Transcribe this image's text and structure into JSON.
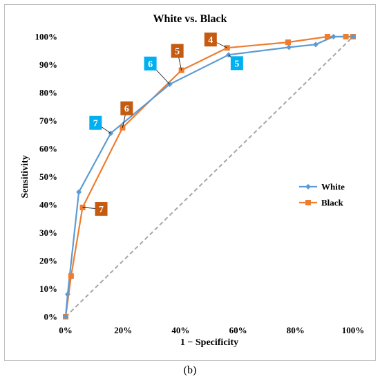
{
  "chart_data": {
    "type": "line",
    "title": "White vs. Black",
    "xlabel": "1 − Specificity",
    "ylabel": "Sensitivity",
    "xlim": [
      0,
      100
    ],
    "ylim": [
      0,
      100
    ],
    "x_ticks": [
      "0%",
      "20%",
      "40%",
      "60%",
      "80%",
      "100%"
    ],
    "y_ticks": [
      "0%",
      "10%",
      "20%",
      "30%",
      "40%",
      "50%",
      "60%",
      "70%",
      "80%",
      "90%",
      "100%"
    ],
    "grid": false,
    "legend_position": "right",
    "reference_line": {
      "from": [
        0,
        0
      ],
      "to": [
        100,
        100
      ],
      "style": "dashed",
      "color": "#a6a6a6"
    },
    "series": [
      {
        "name": "White",
        "color": "#5b9bd5",
        "marker": "diamond",
        "points": [
          [
            0,
            0
          ],
          [
            0.7,
            8
          ],
          [
            4.6,
            44.5
          ],
          [
            15.7,
            65.5
          ],
          [
            36.2,
            83
          ],
          [
            56.7,
            93.5
          ],
          [
            77.7,
            96.2
          ],
          [
            87,
            97.2
          ],
          [
            93.2,
            100
          ],
          [
            100,
            100
          ]
        ]
      },
      {
        "name": "Black",
        "color": "#ed7d31",
        "marker": "square",
        "points": [
          [
            0,
            0
          ],
          [
            1.9,
            14.5
          ],
          [
            5.9,
            39
          ],
          [
            19.8,
            67.5
          ],
          [
            40.3,
            88
          ],
          [
            56.2,
            96
          ],
          [
            77.4,
            98
          ],
          [
            91.1,
            100
          ],
          [
            97.5,
            100
          ],
          [
            100,
            100
          ]
        ]
      }
    ],
    "annotations": [
      {
        "label": "7",
        "series": "White",
        "point": [
          15.7,
          65.5
        ],
        "box_color": "#00b0f0"
      },
      {
        "label": "6",
        "series": "White",
        "point": [
          36.2,
          83
        ],
        "box_color": "#00b0f0"
      },
      {
        "label": "5",
        "series": "White",
        "point": [
          56.7,
          93.5
        ],
        "box_color": "#00b0f0"
      },
      {
        "label": "7",
        "series": "Black",
        "point": [
          5.9,
          39
        ],
        "box_color": "#c55a11"
      },
      {
        "label": "6",
        "series": "Black",
        "point": [
          19.8,
          67.5
        ],
        "box_color": "#c55a11"
      },
      {
        "label": "5",
        "series": "Black",
        "point": [
          40.3,
          88
        ],
        "box_color": "#c55a11"
      },
      {
        "label": "4",
        "series": "Black",
        "point": [
          56.2,
          96
        ],
        "box_color": "#c55a11"
      }
    ]
  },
  "caption": "(b)"
}
